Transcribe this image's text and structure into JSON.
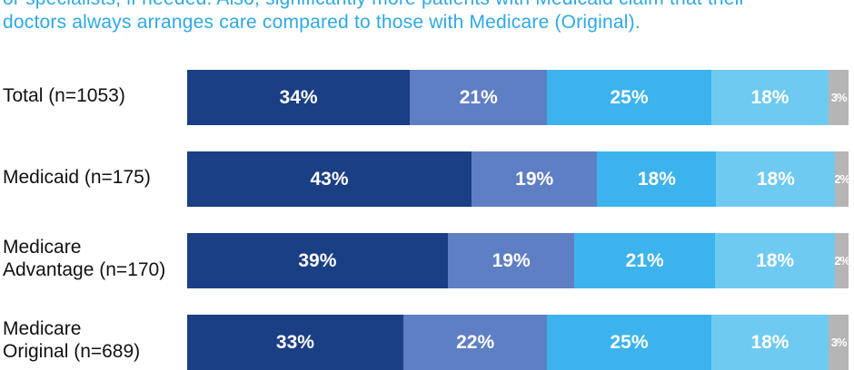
{
  "intro": {
    "line1": "or specialists, if needed. Also, significantly more patients with Medicaid claim that their",
    "line2": "doctors always arranges care compared to those with Medicare (Original)."
  },
  "colors": [
    "#1b3f85",
    "#5f7fc4",
    "#3cb3ec",
    "#6fcaf2",
    "#b5b5b5"
  ],
  "chart_data": {
    "type": "bar",
    "orientation": "horizontal",
    "stacked": true,
    "percent": true,
    "categories": [
      "Total (n=1053)",
      "Medicaid (n=175)",
      "Medicare Advantage (n=170)",
      "Medicare Original (n=689)"
    ],
    "category_lines": [
      [
        "Total (n=1053)"
      ],
      [
        "Medicaid (n=175)"
      ],
      [
        "Medicare",
        "Advantage (n=170)"
      ],
      [
        "Medicare",
        "Original (n=689)"
      ]
    ],
    "series": [
      {
        "values": [
          34,
          43,
          39,
          33
        ],
        "labels": [
          "34%",
          "43%",
          "39%",
          "33%"
        ]
      },
      {
        "values": [
          21,
          19,
          19,
          22
        ],
        "labels": [
          "21%",
          "19%",
          "19%",
          "22%"
        ]
      },
      {
        "values": [
          25,
          18,
          21,
          25
        ],
        "labels": [
          "25%",
          "18%",
          "21%",
          "25%"
        ]
      },
      {
        "values": [
          18,
          18,
          18,
          18
        ],
        "labels": [
          "18%",
          "18%",
          "18%",
          "18%"
        ]
      },
      {
        "values": [
          3,
          2,
          2,
          3
        ],
        "labels": [
          "3%",
          "2%",
          "2%",
          "3%"
        ]
      }
    ],
    "xlim": [
      0,
      100
    ],
    "legend": "none",
    "grid": false
  }
}
